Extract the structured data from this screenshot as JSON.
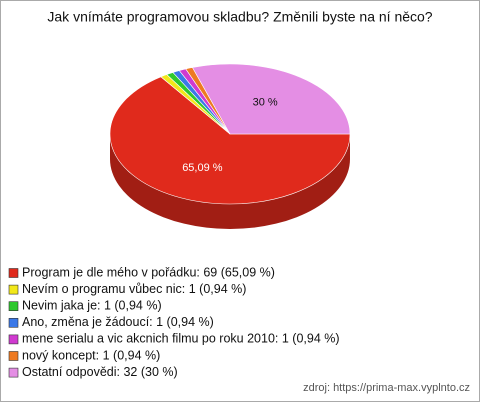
{
  "chart_data": {
    "type": "pie",
    "title": "Jak vnímáte programovou skladbu? Změnili byste na ní něco?",
    "categories": [
      "Program je dle mého v pořádku: 69 (65,09 %)",
      "Nevím o programu vůbec nic: 1 (0,94 %)",
      "Nevim jaka je: 1 (0,94 %)",
      "Ano, změna je žádoucí: 1 (0,94 %)",
      "mene serialu a vic akcnich filmu po roku 2010: 1 (0,94 %)",
      "nový koncept: 1 (0,94 %)",
      "Ostatní odpovědi: 32 (30 %)"
    ],
    "values": [
      65.09,
      0.94,
      0.94,
      0.94,
      0.94,
      0.94,
      30
    ],
    "value_labels": [
      "65,09 %",
      null,
      null,
      null,
      null,
      null,
      "30 %"
    ],
    "colors": [
      "#e02a1c",
      "#f2e81a",
      "#2ec82e",
      "#3a78e8",
      "#d03ad0",
      "#ee7a22",
      "#e48ee4"
    ],
    "source": "zdroj: https://prima-max.vyplnto.cz"
  }
}
